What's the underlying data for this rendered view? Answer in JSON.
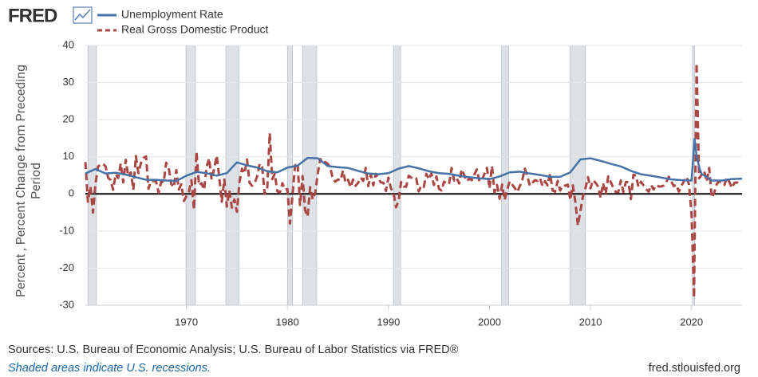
{
  "chart_data": {
    "type": "line",
    "logo": "FRED",
    "ylabel": "Percent , Percent Change from Preceding Period",
    "source": "Sources: U.S. Bureau of Economic Analysis; U.S. Bureau of Labor Statistics via FRED®",
    "note": "Shaded areas indicate U.S. recessions.",
    "site": "fred.stlouisfed.org",
    "xlim": [
      1960,
      2025
    ],
    "xticks": [
      1970,
      1980,
      1990,
      2000,
      2010,
      2020
    ],
    "ylim": [
      -30,
      40
    ],
    "yticks": [
      -30,
      -20,
      -10,
      0,
      10,
      20,
      30,
      40
    ],
    "grid": true,
    "recession_color": "#dde1e6",
    "recessions": [
      [
        1960.25,
        1961.1
      ],
      [
        1969.95,
        1970.9
      ],
      [
        1973.9,
        1975.2
      ],
      [
        1980.0,
        1980.5
      ],
      [
        1981.5,
        1982.9
      ],
      [
        1990.5,
        1991.2
      ],
      [
        2001.2,
        2001.9
      ],
      [
        2007.95,
        2009.5
      ],
      [
        2020.1,
        2020.3
      ]
    ],
    "series": [
      {
        "name": "Unemployment Rate",
        "color": "#4572a7",
        "dash": false,
        "x": [
          1960,
          1961,
          1962,
          1963,
          1964,
          1965,
          1966,
          1967,
          1968,
          1969,
          1970,
          1971,
          1972,
          1973,
          1974,
          1975,
          1976,
          1977,
          1978,
          1979,
          1980,
          1981,
          1982,
          1983,
          1984,
          1985,
          1986,
          1987,
          1988,
          1989,
          1990,
          1991,
          1992,
          1993,
          1994,
          1995,
          1996,
          1997,
          1998,
          1999,
          2000,
          2001,
          2002,
          2003,
          2004,
          2005,
          2006,
          2007,
          2008,
          2009,
          2010,
          2011,
          2012,
          2013,
          2014,
          2015,
          2016,
          2017,
          2018,
          2019,
          2020,
          2020.3,
          2020.5,
          2020.8,
          2021,
          2022,
          2023,
          2024,
          2025
        ],
        "values": [
          5.5,
          6.7,
          5.5,
          5.7,
          5.2,
          4.5,
          3.8,
          3.8,
          3.6,
          3.5,
          4.9,
          5.9,
          5.6,
          4.9,
          5.6,
          8.5,
          7.7,
          7.1,
          6.1,
          5.8,
          7.1,
          7.6,
          9.7,
          9.6,
          7.5,
          7.2,
          7.0,
          6.2,
          5.5,
          5.3,
          5.6,
          6.8,
          7.5,
          6.9,
          6.1,
          5.6,
          5.4,
          4.9,
          4.5,
          4.2,
          4.0,
          4.7,
          5.8,
          6.0,
          5.5,
          5.1,
          4.6,
          4.6,
          5.8,
          9.3,
          9.6,
          8.9,
          8.1,
          7.4,
          6.2,
          5.3,
          4.9,
          4.4,
          3.9,
          3.7,
          3.6,
          14.8,
          10.2,
          6.8,
          5.4,
          3.6,
          3.6,
          4.0,
          4.1
        ]
      },
      {
        "name": "Real Gross Domestic Product",
        "color": "#aa4643",
        "dash": true,
        "x": [
          1960,
          1960.25,
          1960.5,
          1960.75,
          1961,
          1961.25,
          1961.5,
          1961.75,
          1962,
          1962.25,
          1962.5,
          1962.75,
          1963,
          1963.25,
          1963.5,
          1963.75,
          1964,
          1964.25,
          1964.5,
          1964.75,
          1965,
          1965.25,
          1965.5,
          1965.75,
          1966,
          1966.25,
          1966.5,
          1966.75,
          1967,
          1967.25,
          1967.5,
          1967.75,
          1968,
          1968.25,
          1968.5,
          1968.75,
          1969,
          1969.25,
          1969.5,
          1969.75,
          1970,
          1970.25,
          1970.5,
          1970.75,
          1971,
          1971.25,
          1971.5,
          1971.75,
          1972,
          1972.25,
          1972.5,
          1972.75,
          1973,
          1973.25,
          1973.5,
          1973.75,
          1974,
          1974.25,
          1974.5,
          1974.75,
          1975,
          1975.25,
          1975.5,
          1975.75,
          1976,
          1976.25,
          1976.5,
          1976.75,
          1977,
          1977.25,
          1977.5,
          1977.75,
          1978,
          1978.25,
          1978.5,
          1978.75,
          1979,
          1979.25,
          1979.5,
          1979.75,
          1980,
          1980.25,
          1980.5,
          1980.75,
          1981,
          1981.25,
          1981.5,
          1981.75,
          1982,
          1982.25,
          1982.5,
          1982.75,
          1983,
          1983.25,
          1983.5,
          1983.75,
          1984,
          1984.25,
          1984.5,
          1984.75,
          1985,
          1985.25,
          1985.5,
          1985.75,
          1986,
          1986.25,
          1986.5,
          1986.75,
          1987,
          1987.25,
          1987.5,
          1987.75,
          1988,
          1988.25,
          1988.5,
          1988.75,
          1989,
          1989.25,
          1989.5,
          1989.75,
          1990,
          1990.25,
          1990.5,
          1990.75,
          1991,
          1991.25,
          1991.5,
          1991.75,
          1992,
          1992.25,
          1992.5,
          1992.75,
          1993,
          1993.25,
          1993.5,
          1993.75,
          1994,
          1994.25,
          1994.5,
          1994.75,
          1995,
          1995.25,
          1995.5,
          1995.75,
          1996,
          1996.25,
          1996.5,
          1996.75,
          1997,
          1997.25,
          1997.5,
          1997.75,
          1998,
          1998.25,
          1998.5,
          1998.75,
          1999,
          1999.25,
          1999.5,
          1999.75,
          2000,
          2000.25,
          2000.5,
          2000.75,
          2001,
          2001.25,
          2001.5,
          2001.75,
          2002,
          2002.25,
          2002.5,
          2002.75,
          2003,
          2003.25,
          2003.5,
          2003.75,
          2004,
          2004.25,
          2004.5,
          2004.75,
          2005,
          2005.25,
          2005.5,
          2005.75,
          2006,
          2006.25,
          2006.5,
          2006.75,
          2007,
          2007.25,
          2007.5,
          2007.75,
          2008,
          2008.25,
          2008.5,
          2008.75,
          2009,
          2009.25,
          2009.5,
          2009.75,
          2010,
          2010.25,
          2010.5,
          2010.75,
          2011,
          2011.25,
          2011.5,
          2011.75,
          2012,
          2012.25,
          2012.5,
          2012.75,
          2013,
          2013.25,
          2013.5,
          2013.75,
          2014,
          2014.25,
          2014.5,
          2014.75,
          2015,
          2015.25,
          2015.5,
          2015.75,
          2016,
          2016.25,
          2016.5,
          2016.75,
          2017,
          2017.25,
          2017.5,
          2017.75,
          2018,
          2018.25,
          2018.5,
          2018.75,
          2019,
          2019.25,
          2019.5,
          2019.75,
          2020,
          2020.25,
          2020.5,
          2020.75,
          2021,
          2021.25,
          2021.5,
          2021.75,
          2022,
          2022.25,
          2022.5,
          2022.75,
          2023,
          2023.25,
          2023.5,
          2023.75,
          2024,
          2024.25,
          2024.5,
          2024.75
        ],
        "values": [
          8.6,
          -2.1,
          2.0,
          -5.0,
          2.7,
          7.3,
          8.0,
          8.1,
          7.4,
          4.4,
          3.7,
          1.1,
          5.3,
          4.3,
          8.2,
          3.1,
          9.2,
          4.6,
          5.8,
          1.1,
          10.2,
          5.6,
          8.3,
          9.7,
          10.1,
          1.4,
          3.5,
          3.5,
          3.3,
          0.3,
          3.3,
          3.1,
          8.4,
          7.0,
          2.7,
          1.8,
          6.4,
          1.2,
          2.6,
          -1.9,
          -0.6,
          0.6,
          3.7,
          -4.2,
          11.3,
          2.3,
          2.9,
          1.1,
          7.3,
          9.6,
          3.8,
          6.8,
          10.3,
          4.5,
          -2.1,
          3.9,
          -3.4,
          1.0,
          -3.7,
          -1.5,
          -4.8,
          3.1,
          6.8,
          5.5,
          9.3,
          3.0,
          2.2,
          2.9,
          4.7,
          8.1,
          7.3,
          0.0,
          1.3,
          16.4,
          4.0,
          5.4,
          0.7,
          0.4,
          2.9,
          1.1,
          1.3,
          -8.0,
          -0.5,
          7.6,
          8.4,
          -3.0,
          4.8,
          -4.4,
          -6.1,
          1.8,
          -1.5,
          0.2,
          5.4,
          9.4,
          8.2,
          8.6,
          8.1,
          7.1,
          3.9,
          3.3,
          3.9,
          3.6,
          6.3,
          3.1,
          3.8,
          1.8,
          3.9,
          2.2,
          3.0,
          4.4,
          3.5,
          7.0,
          2.1,
          5.3,
          2.3,
          5.4,
          4.1,
          3.1,
          3.0,
          0.8,
          4.4,
          1.5,
          0.3,
          -3.6,
          -1.9,
          3.2,
          2.0,
          1.9,
          4.9,
          4.4,
          4.0,
          4.2,
          0.7,
          2.3,
          1.9,
          5.4,
          3.9,
          5.5,
          2.4,
          4.7,
          1.4,
          0.9,
          3.3,
          2.9,
          2.6,
          7.0,
          3.6,
          4.3,
          2.8,
          6.6,
          5.1,
          3.4,
          4.1,
          3.7,
          5.2,
          6.6,
          3.4,
          3.6,
          5.4,
          7.0,
          1.5,
          7.5,
          0.4,
          2.4,
          -1.3,
          2.5,
          -1.6,
          1.1,
          3.4,
          2.5,
          1.6,
          0.5,
          2.1,
          3.8,
          6.8,
          4.7,
          2.2,
          3.0,
          3.7,
          3.5,
          4.3,
          2.1,
          3.4,
          2.3,
          5.5,
          0.9,
          0.6,
          3.5,
          0.9,
          2.3,
          2.2,
          2.5,
          -1.6,
          2.3,
          -2.1,
          -8.5,
          -4.6,
          -0.7,
          1.5,
          4.5,
          1.5,
          3.7,
          3.0,
          2.0,
          -1.0,
          2.9,
          -0.1,
          4.7,
          3.2,
          1.7,
          0.5,
          0.5,
          3.6,
          0.5,
          3.2,
          3.2,
          -1.4,
          5.2,
          4.9,
          1.9,
          3.3,
          2.3,
          1.3,
          0.6,
          2.4,
          1.2,
          2.4,
          2.0,
          2.0,
          2.3,
          3.2,
          4.6,
          3.3,
          2.1,
          2.5,
          0.6,
          2.2,
          3.4,
          4.6,
          2.6,
          -5.5,
          -28.0,
          35.2,
          4.2,
          5.2,
          6.2,
          3.3,
          7.0,
          -1.0,
          0.3,
          2.7,
          3.4,
          2.8,
          2.4,
          4.4,
          3.2,
          1.6,
          3.0,
          3.1,
          2.4
        ]
      }
    ]
  }
}
